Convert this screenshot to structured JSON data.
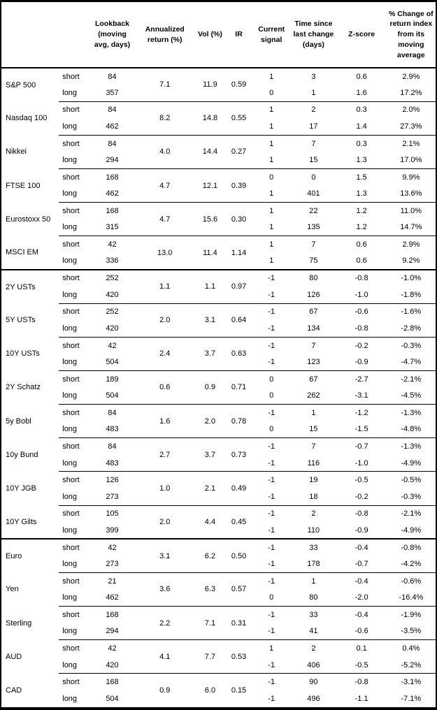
{
  "colors": {
    "text": "#000000",
    "border": "#000000",
    "background": "#ffffff"
  },
  "table": {
    "headers": {
      "instrument": "",
      "leg": "",
      "lookback": "Lookback (moving avg, days)",
      "annualized_return": "Annualized return (%)",
      "vol": "Vol (%)",
      "ir": "IR",
      "current_signal": "Current signal",
      "time_since": "Time since last change (days)",
      "z_score": "Z-score",
      "pct_change": "% Change of return index from its moving average"
    },
    "leg_labels": {
      "short": "short",
      "long": "long"
    },
    "instruments": [
      {
        "name": "S&P 500",
        "annualized_return": "7.1",
        "vol": "11.9",
        "ir": "0.59",
        "thick_border_after": false,
        "short": {
          "lookback": "84",
          "signal": "1",
          "time": "3",
          "z": "0.6",
          "pct": "2.9%"
        },
        "long": {
          "lookback": "357",
          "signal": "0",
          "time": "1",
          "z": "1.6",
          "pct": "17.2%"
        }
      },
      {
        "name": "Nasdaq 100",
        "annualized_return": "8.2",
        "vol": "14.8",
        "ir": "0.55",
        "thick_border_after": false,
        "short": {
          "lookback": "84",
          "signal": "1",
          "time": "2",
          "z": "0.3",
          "pct": "2.0%"
        },
        "long": {
          "lookback": "462",
          "signal": "1",
          "time": "17",
          "z": "1.4",
          "pct": "27.3%"
        }
      },
      {
        "name": "Nikkei",
        "annualized_return": "4.0",
        "vol": "14.4",
        "ir": "0.27",
        "thick_border_after": false,
        "short": {
          "lookback": "84",
          "signal": "1",
          "time": "7",
          "z": "0.3",
          "pct": "2.1%"
        },
        "long": {
          "lookback": "294",
          "signal": "1",
          "time": "15",
          "z": "1.3",
          "pct": "17.0%"
        }
      },
      {
        "name": "FTSE 100",
        "annualized_return": "4.7",
        "vol": "12.1",
        "ir": "0.39",
        "thick_border_after": false,
        "short": {
          "lookback": "168",
          "signal": "0",
          "time": "0",
          "z": "1.5",
          "pct": "9.9%"
        },
        "long": {
          "lookback": "462",
          "signal": "1",
          "time": "401",
          "z": "1.3",
          "pct": "13.6%"
        }
      },
      {
        "name": "Eurostoxx 50",
        "annualized_return": "4.7",
        "vol": "15.6",
        "ir": "0.30",
        "thick_border_after": false,
        "short": {
          "lookback": "168",
          "signal": "1",
          "time": "22",
          "z": "1.2",
          "pct": "11.0%"
        },
        "long": {
          "lookback": "315",
          "signal": "1",
          "time": "135",
          "z": "1.2",
          "pct": "14.7%"
        }
      },
      {
        "name": "MSCI EM",
        "annualized_return": "13.0",
        "vol": "11.4",
        "ir": "1.14",
        "thick_border_after": true,
        "short": {
          "lookback": "42",
          "signal": "1",
          "time": "7",
          "z": "0.6",
          "pct": "2.9%"
        },
        "long": {
          "lookback": "336",
          "signal": "1",
          "time": "75",
          "z": "0.6",
          "pct": "9.2%"
        }
      },
      {
        "name": "2Y USTs",
        "annualized_return": "1.1",
        "vol": "1.1",
        "ir": "0.97",
        "thick_border_after": false,
        "short": {
          "lookback": "252",
          "signal": "-1",
          "time": "80",
          "z": "-0.8",
          "pct": "-1.0%"
        },
        "long": {
          "lookback": "420",
          "signal": "-1",
          "time": "126",
          "z": "-1.0",
          "pct": "-1.8%"
        }
      },
      {
        "name": "5Y USTs",
        "annualized_return": "2.0",
        "vol": "3.1",
        "ir": "0.64",
        "thick_border_after": false,
        "short": {
          "lookback": "252",
          "signal": "-1",
          "time": "67",
          "z": "-0.6",
          "pct": "-1.6%"
        },
        "long": {
          "lookback": "420",
          "signal": "-1",
          "time": "134",
          "z": "-0.8",
          "pct": "-2.8%"
        }
      },
      {
        "name": "10Y USTs",
        "annualized_return": "2.4",
        "vol": "3.7",
        "ir": "0.63",
        "thick_border_after": false,
        "short": {
          "lookback": "42",
          "signal": "-1",
          "time": "7",
          "z": "-0.2",
          "pct": "-0.3%"
        },
        "long": {
          "lookback": "504",
          "signal": "-1",
          "time": "123",
          "z": "-0.9",
          "pct": "-4.7%"
        }
      },
      {
        "name": "2Y Schatz",
        "annualized_return": "0.6",
        "vol": "0.9",
        "ir": "0.71",
        "thick_border_after": false,
        "short": {
          "lookback": "189",
          "signal": "0",
          "time": "67",
          "z": "-2.7",
          "pct": "-2.1%"
        },
        "long": {
          "lookback": "504",
          "signal": "0",
          "time": "262",
          "z": "-3.1",
          "pct": "-4.5%"
        }
      },
      {
        "name": "5y Bobl",
        "annualized_return": "1.6",
        "vol": "2.0",
        "ir": "0.78",
        "thick_border_after": false,
        "short": {
          "lookback": "84",
          "signal": "-1",
          "time": "1",
          "z": "-1.2",
          "pct": "-1.3%"
        },
        "long": {
          "lookback": "483",
          "signal": "0",
          "time": "15",
          "z": "-1.5",
          "pct": "-4.8%"
        }
      },
      {
        "name": "10y Bund",
        "annualized_return": "2.7",
        "vol": "3.7",
        "ir": "0.73",
        "thick_border_after": false,
        "short": {
          "lookback": "84",
          "signal": "-1",
          "time": "7",
          "z": "-0.7",
          "pct": "-1.3%"
        },
        "long": {
          "lookback": "483",
          "signal": "-1",
          "time": "116",
          "z": "-1.0",
          "pct": "-4.9%"
        }
      },
      {
        "name": "10Y JGB",
        "annualized_return": "1.0",
        "vol": "2.1",
        "ir": "0.49",
        "thick_border_after": false,
        "short": {
          "lookback": "126",
          "signal": "-1",
          "time": "19",
          "z": "-0.5",
          "pct": "-0.5%"
        },
        "long": {
          "lookback": "273",
          "signal": "-1",
          "time": "18",
          "z": "-0.2",
          "pct": "-0.3%"
        }
      },
      {
        "name": "10Y Gilts",
        "annualized_return": "2.0",
        "vol": "4.4",
        "ir": "0.45",
        "thick_border_after": true,
        "short": {
          "lookback": "105",
          "signal": "-1",
          "time": "2",
          "z": "-0.8",
          "pct": "-2.1%"
        },
        "long": {
          "lookback": "399",
          "signal": "-1",
          "time": "110",
          "z": "-0.9",
          "pct": "-4.9%"
        }
      },
      {
        "name": "Euro",
        "annualized_return": "3.1",
        "vol": "6.2",
        "ir": "0.50",
        "thick_border_after": false,
        "short": {
          "lookback": "42",
          "signal": "-1",
          "time": "33",
          "z": "-0.4",
          "pct": "-0.8%"
        },
        "long": {
          "lookback": "273",
          "signal": "-1",
          "time": "178",
          "z": "-0.7",
          "pct": "-4.2%"
        }
      },
      {
        "name": "Yen",
        "annualized_return": "3.6",
        "vol": "6.3",
        "ir": "0.57",
        "thick_border_after": false,
        "short": {
          "lookback": "21",
          "signal": "-1",
          "time": "1",
          "z": "-0.4",
          "pct": "-0.6%"
        },
        "long": {
          "lookback": "462",
          "signal": "0",
          "time": "80",
          "z": "-2.0",
          "pct": "-16.4%"
        }
      },
      {
        "name": "Sterling",
        "annualized_return": "2.2",
        "vol": "7.1",
        "ir": "0.31",
        "thick_border_after": false,
        "short": {
          "lookback": "168",
          "signal": "-1",
          "time": "33",
          "z": "-0.4",
          "pct": "-1.9%"
        },
        "long": {
          "lookback": "294",
          "signal": "-1",
          "time": "41",
          "z": "-0.6",
          "pct": "-3.5%"
        }
      },
      {
        "name": "AUD",
        "annualized_return": "4.1",
        "vol": "7.7",
        "ir": "0.53",
        "thick_border_after": false,
        "short": {
          "lookback": "42",
          "signal": "1",
          "time": "2",
          "z": "0.1",
          "pct": "0.4%"
        },
        "long": {
          "lookback": "420",
          "signal": "-1",
          "time": "406",
          "z": "-0.5",
          "pct": "-5.2%"
        }
      },
      {
        "name": "CAD",
        "annualized_return": "0.9",
        "vol": "6.0",
        "ir": "0.15",
        "thick_border_after": false,
        "short": {
          "lookback": "168",
          "signal": "-1",
          "time": "90",
          "z": "-0.8",
          "pct": "-3.1%"
        },
        "long": {
          "lookback": "504",
          "signal": "-1",
          "time": "496",
          "z": "-1.1",
          "pct": "-7.1%"
        }
      }
    ]
  }
}
